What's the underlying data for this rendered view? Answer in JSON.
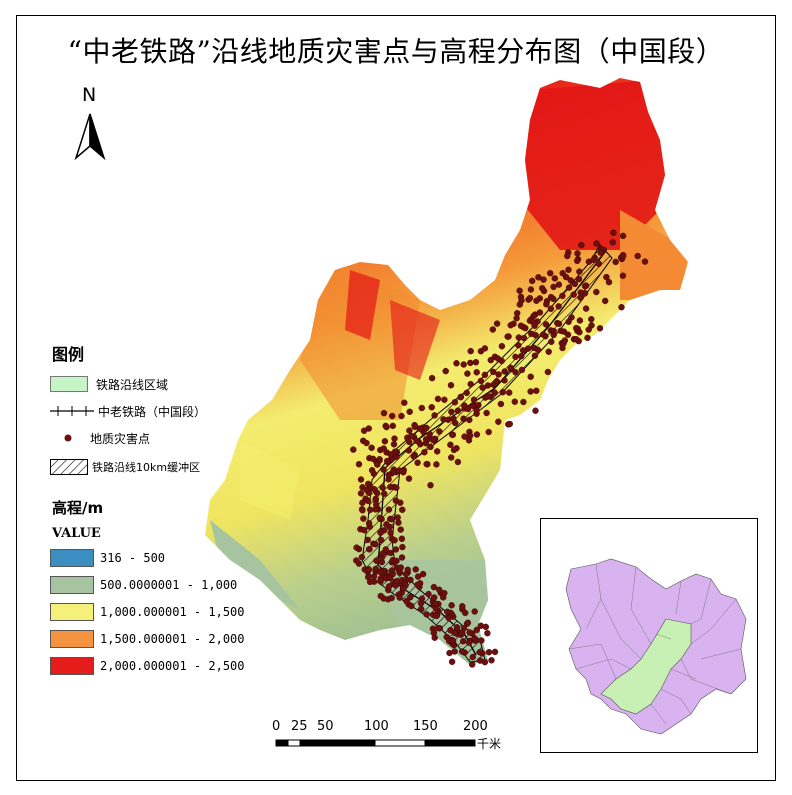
{
  "title": "“中老铁路”沿线地质灾害点与高程分布图（中国段）",
  "north_arrow": {
    "label": "N",
    "icon": "north-arrow-icon"
  },
  "legend": {
    "title": "图例",
    "items": [
      {
        "label": "铁路沿线区域",
        "symbol": "fill",
        "color": "#c8f5c8"
      },
      {
        "label": "中老铁路（中国段）",
        "symbol": "railway-line",
        "color": "#000000"
      },
      {
        "label": "地质灾害点",
        "symbol": "dot",
        "color": "#6b1010"
      },
      {
        "label": "铁路沿线10km缓冲区",
        "symbol": "hatch",
        "color": "#000000"
      }
    ]
  },
  "elevation": {
    "title": "高程/m",
    "field": "VALUE",
    "classes": [
      {
        "label": "316 - 500",
        "color": "#3a8fc0"
      },
      {
        "label": "500.0000001 - 1,000",
        "color": "#a7c4a0"
      },
      {
        "label": "1,000.000001 - 1,500",
        "color": "#f4f07a"
      },
      {
        "label": "1,500.000001 - 2,000",
        "color": "#f59340"
      },
      {
        "label": "2,000.000001 - 2,500",
        "color": "#e51c1c"
      }
    ]
  },
  "scale_bar": {
    "ticks": [
      "0",
      "25",
      "50",
      "100",
      "150",
      "200"
    ],
    "unit": "千米"
  },
  "colors": {
    "hazard_dot": "#6b1010",
    "inset_region": "#d9b3f0",
    "inset_rail_area": "#c8f0b4"
  }
}
